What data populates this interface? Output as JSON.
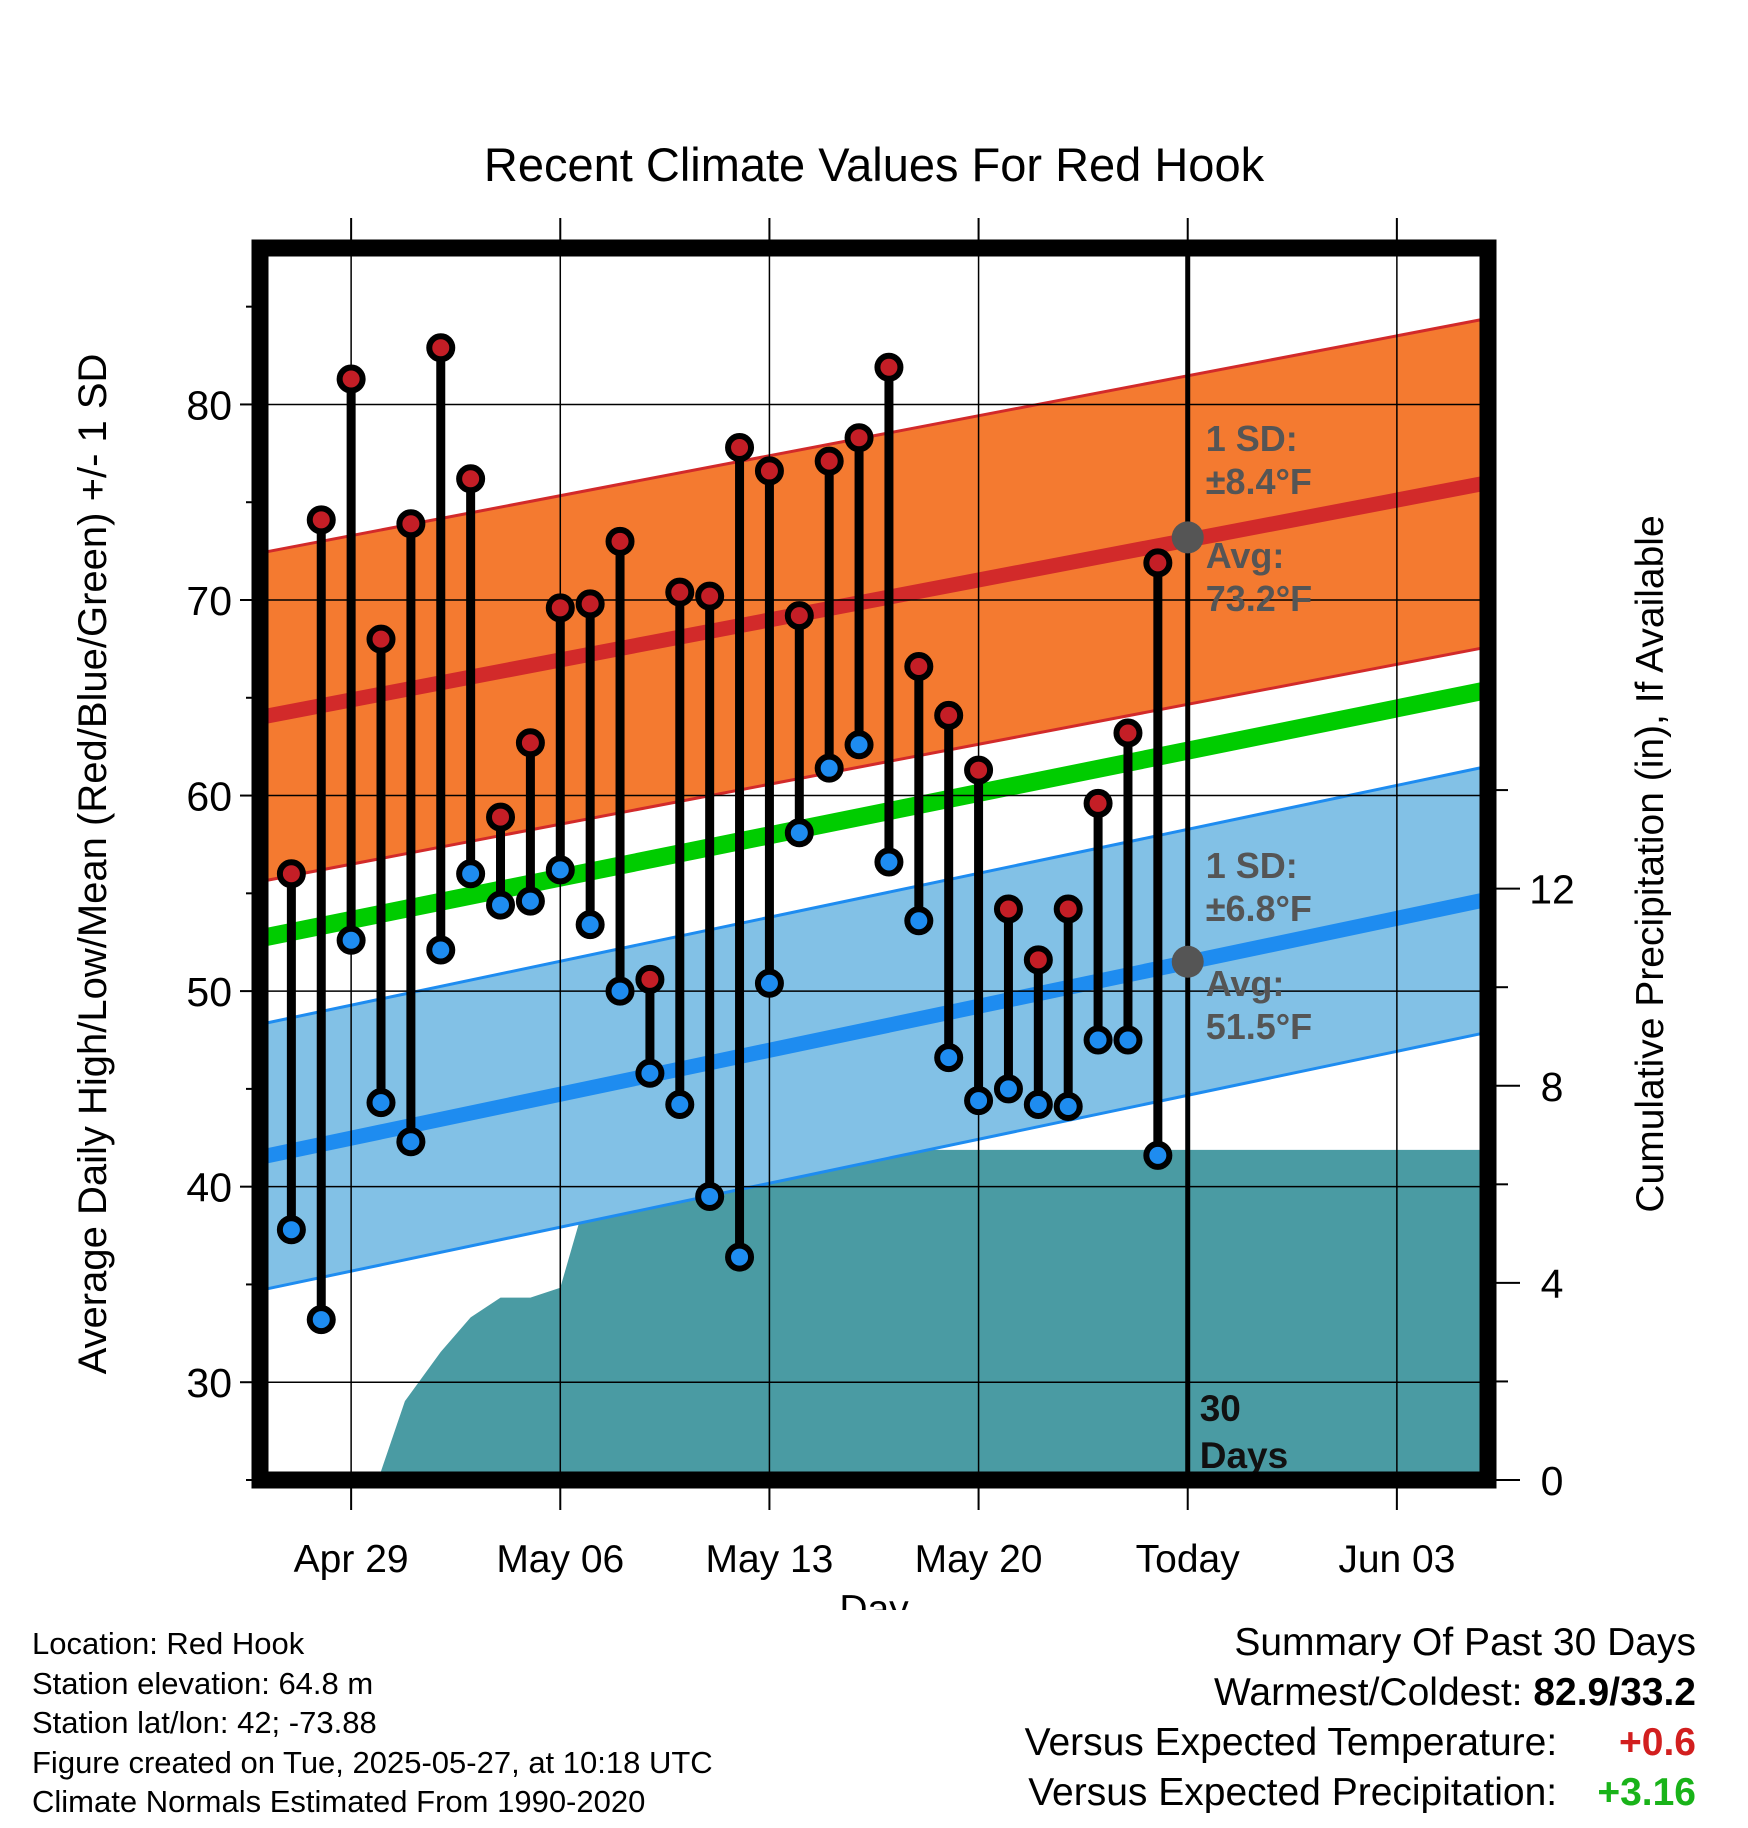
{
  "title": "Recent Climate Values For Red Hook",
  "colors": {
    "high_band": "#f47a30",
    "high_line": "#d22a2a",
    "low_band": "#82c1e6",
    "low_line": "#1e8cf0",
    "mean_line": "#00cc00",
    "precip": "#4a9ba3",
    "high_dot": "#c41e26",
    "low_dot": "#1e8cf0",
    "avg_marker": "#555555"
  },
  "chart_data": {
    "type": "line",
    "title": "Recent Climate Values For Red Hook",
    "xlabel": "Day",
    "ylabel": "Average Daily High/Low/Mean (Red/Blue/Green) +/- 1 SD",
    "y2label": "Cumulative Precipitation (in), If Available",
    "xlim": [
      -3.05,
      38.05
    ],
    "ylim": [
      25,
      88
    ],
    "y2lim": [
      0,
      25
    ],
    "x_ticks": [
      {
        "x": 0,
        "label": "Apr 29"
      },
      {
        "x": 7,
        "label": "May 06"
      },
      {
        "x": 14,
        "label": "May 13"
      },
      {
        "x": 21,
        "label": "May 20"
      },
      {
        "x": 28,
        "label": "Today"
      },
      {
        "x": 35,
        "label": "Jun 03"
      }
    ],
    "y_ticks": [
      30,
      40,
      50,
      60,
      70,
      80
    ],
    "y2_ticks": [
      0,
      4,
      8,
      12
    ],
    "grid": true,
    "today_x": 28,
    "today_label": [
      "30",
      "Days"
    ],
    "normals": {
      "high": {
        "start": 64.0,
        "end": 76.0
      },
      "low": {
        "start": 41.5,
        "end": 54.7
      },
      "mean": {
        "start": 52.7,
        "end": 65.4
      },
      "high_sd": 8.4,
      "low_sd": 6.8
    },
    "annotations": {
      "high_sd": [
        "1 SD:",
        "±8.4°F"
      ],
      "high_avg": [
        "Avg:",
        "73.2°F"
      ],
      "low_sd": [
        "1 SD:",
        "±6.8°F"
      ],
      "low_avg": [
        "Avg:",
        "51.5°F"
      ]
    },
    "avg_markers": [
      {
        "x": 28,
        "y": 73.2
      },
      {
        "x": 28,
        "y": 51.5
      }
    ],
    "daily": [
      {
        "x": -2,
        "high": 56.0,
        "low": 37.8
      },
      {
        "x": -1,
        "high": 74.1,
        "low": 33.2
      },
      {
        "x": 0,
        "high": 81.3,
        "low": 52.6
      },
      {
        "x": 1,
        "high": 68.0,
        "low": 44.3
      },
      {
        "x": 2,
        "high": 73.9,
        "low": 42.3
      },
      {
        "x": 3,
        "high": 82.9,
        "low": 52.1
      },
      {
        "x": 4,
        "high": 76.2,
        "low": 56.0
      },
      {
        "x": 5,
        "high": 58.9,
        "low": 54.4
      },
      {
        "x": 6,
        "high": 62.7,
        "low": 54.6
      },
      {
        "x": 7,
        "high": 69.6,
        "low": 56.2
      },
      {
        "x": 8,
        "high": 69.8,
        "low": 53.4
      },
      {
        "x": 9,
        "high": 73.0,
        "low": 50.0
      },
      {
        "x": 10,
        "high": 50.6,
        "low": 45.8
      },
      {
        "x": 11,
        "high": 70.4,
        "low": 44.2
      },
      {
        "x": 12,
        "high": 70.2,
        "low": 39.5
      },
      {
        "x": 13,
        "high": 77.8,
        "low": 36.4
      },
      {
        "x": 14,
        "high": 76.6,
        "low": 50.4
      },
      {
        "x": 15,
        "high": 69.2,
        "low": 58.1
      },
      {
        "x": 16,
        "high": 77.1,
        "low": 61.4
      },
      {
        "x": 17,
        "high": 78.3,
        "low": 62.6
      },
      {
        "x": 18,
        "high": 81.9,
        "low": 56.6
      },
      {
        "x": 19,
        "high": 66.6,
        "low": 53.6
      },
      {
        "x": 20,
        "high": 64.1,
        "low": 46.6
      },
      {
        "x": 21,
        "high": 61.3,
        "low": 44.4
      },
      {
        "x": 22,
        "high": 54.2,
        "low": 45.0
      },
      {
        "x": 23,
        "high": 51.6,
        "low": 44.2
      },
      {
        "x": 24,
        "high": 54.2,
        "low": 44.1
      },
      {
        "x": 25,
        "high": 59.6,
        "low": 47.5
      },
      {
        "x": 26,
        "high": 63.2,
        "low": 47.5
      },
      {
        "x": 27,
        "high": 71.9,
        "low": 41.6
      }
    ],
    "precip": [
      {
        "x": 0.9,
        "y": 0
      },
      {
        "x": 1.8,
        "y": 1.6
      },
      {
        "x": 3.0,
        "y": 2.6
      },
      {
        "x": 4.0,
        "y": 3.3
      },
      {
        "x": 5.0,
        "y": 3.7
      },
      {
        "x": 6.0,
        "y": 3.7
      },
      {
        "x": 7.0,
        "y": 3.9
      },
      {
        "x": 8.0,
        "y": 6.0
      },
      {
        "x": 9.0,
        "y": 6.0
      },
      {
        "x": 10.0,
        "y": 6.1
      },
      {
        "x": 11.0,
        "y": 6.15
      },
      {
        "x": 12.0,
        "y": 6.15
      },
      {
        "x": 13.0,
        "y": 6.2
      },
      {
        "x": 14.0,
        "y": 6.3
      },
      {
        "x": 15.0,
        "y": 6.4
      },
      {
        "x": 16.0,
        "y": 6.55
      },
      {
        "x": 17.0,
        "y": 6.55
      },
      {
        "x": 18.0,
        "y": 6.7
      },
      {
        "x": 19.0,
        "y": 6.7
      },
      {
        "x": 20.0,
        "y": 6.7
      },
      {
        "x": 21.0,
        "y": 6.7
      },
      {
        "x": 38.05,
        "y": 6.7
      }
    ]
  },
  "info": {
    "location": "Location: Red Hook",
    "elevation": "Station elevation: 64.8 m",
    "latlon": "Station lat/lon: 42; -73.88",
    "created": "Figure created on Tue, 2025-05-27, at 10:18 UTC",
    "normals": "Climate Normals Estimated From 1990-2020"
  },
  "summary": {
    "heading": "Summary Of Past 30 Days",
    "warm_cold_label": "Warmest/Coldest:",
    "warm_cold_value": "82.9/33.2",
    "temp_label": "Versus Expected Temperature:",
    "temp_value": "+0.6",
    "precip_label": "Versus Expected Precipitation:",
    "precip_value": "+3.16"
  }
}
